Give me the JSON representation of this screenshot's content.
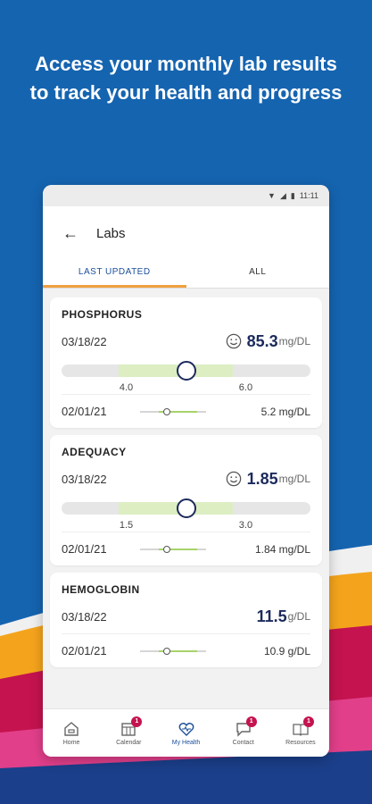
{
  "headline": "Access your monthly lab results to track your health and progress",
  "status_bar": {
    "time": "11:11"
  },
  "app_bar": {
    "title": "Labs"
  },
  "tabs": [
    {
      "label": "LAST UPDATED",
      "active": true
    },
    {
      "label": "ALL",
      "active": false
    }
  ],
  "labs": [
    {
      "name": "PHOSPHORUS",
      "latest_date": "03/18/22",
      "latest_value": "85.3",
      "unit": "mg/DL",
      "smiley": true,
      "range_low": "4.0",
      "range_high": "6.0",
      "previous_date": "02/01/21",
      "previous_value": "5.2 mg/DL"
    },
    {
      "name": "ADEQUACY",
      "latest_date": "03/18/22",
      "latest_value": "1.85",
      "unit": "mg/DL",
      "smiley": true,
      "range_low": "1.5",
      "range_high": "3.0",
      "previous_date": "02/01/21",
      "previous_value": "1.84 mg/DL"
    },
    {
      "name": "HEMOGLOBIN",
      "latest_date": "03/18/22",
      "latest_value": "11.5",
      "unit": "g/DL",
      "smiley": false,
      "previous_date": "02/01/21",
      "previous_value": "10.9 g/DL"
    }
  ],
  "bottom_nav": [
    {
      "label": "Home",
      "icon": "home-icon",
      "badge": ""
    },
    {
      "label": "Calendar",
      "icon": "calendar-icon",
      "badge": "1"
    },
    {
      "label": "My Health",
      "icon": "heart-icon",
      "badge": "",
      "active": true
    },
    {
      "label": "Contact",
      "icon": "chat-icon",
      "badge": "1"
    },
    {
      "label": "Resources",
      "icon": "book-icon",
      "badge": "1"
    }
  ],
  "colors": {
    "background": "#1564b0",
    "accent_navy": "#1c2a5c",
    "tab_indicator": "#f0a040",
    "badge": "#c4134e",
    "range_good": "#dceec2"
  }
}
